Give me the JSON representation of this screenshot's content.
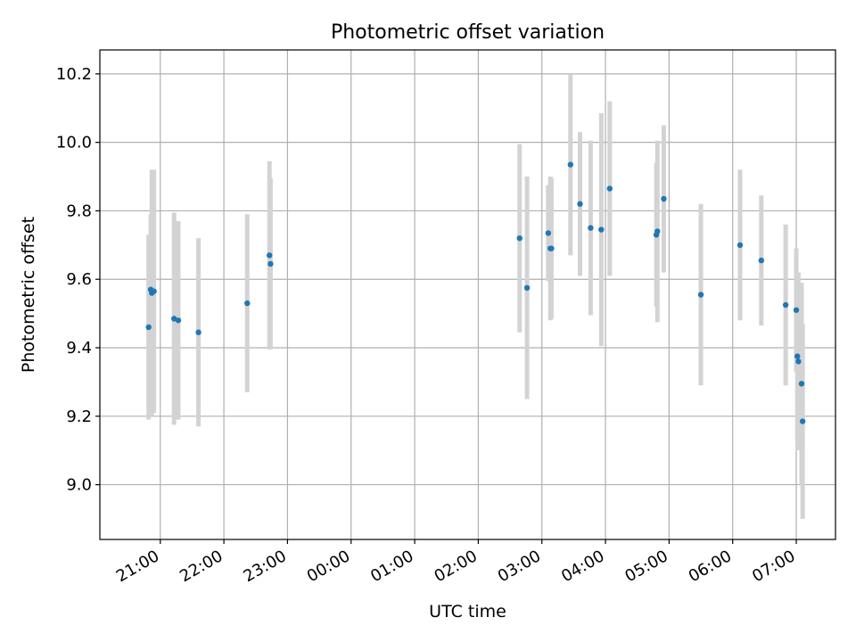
{
  "chart_data": {
    "type": "scatter",
    "title": "Photometric offset variation",
    "xlabel": "UTC time",
    "ylabel": "Photometric offset",
    "xlim": [
      "20:03",
      "07:37"
    ],
    "ylim": [
      8.84,
      10.27
    ],
    "x_ticks": [
      "21:00",
      "22:00",
      "23:00",
      "00:00",
      "01:00",
      "02:00",
      "03:00",
      "04:00",
      "05:00",
      "06:00",
      "07:00"
    ],
    "y_ticks": [
      9.0,
      9.2,
      9.4,
      9.6,
      9.8,
      10.0,
      10.2
    ],
    "grid": true,
    "colors": {
      "point": "#1f77b4",
      "errorbar": "#d3d3d3",
      "grid": "#b0b0b0"
    },
    "points": [
      {
        "time": "20:49",
        "y": 9.46,
        "err": 0.27
      },
      {
        "time": "20:51",
        "y": 9.57,
        "err": 0.22
      },
      {
        "time": "20:52",
        "y": 9.56,
        "err": 0.36
      },
      {
        "time": "20:54",
        "y": 9.565,
        "err": 0.355
      },
      {
        "time": "21:13",
        "y": 9.485,
        "err": 0.31
      },
      {
        "time": "21:17",
        "y": 9.48,
        "err": 0.29
      },
      {
        "time": "21:36",
        "y": 9.445,
        "err": 0.275
      },
      {
        "time": "22:22",
        "y": 9.53,
        "err": 0.26
      },
      {
        "time": "22:43",
        "y": 9.67,
        "err": 0.275
      },
      {
        "time": "22:44",
        "y": 9.645,
        "err": 0.25
      },
      {
        "time": "02:39",
        "y": 9.72,
        "err": 0.275
      },
      {
        "time": "02:46",
        "y": 9.575,
        "err": 0.325
      },
      {
        "time": "03:06",
        "y": 9.735,
        "err": 0.14
      },
      {
        "time": "03:08",
        "y": 9.69,
        "err": 0.21
      },
      {
        "time": "03:09",
        "y": 9.69,
        "err": 0.205
      },
      {
        "time": "03:27",
        "y": 9.935,
        "err": 0.265
      },
      {
        "time": "03:36",
        "y": 9.82,
        "err": 0.21
      },
      {
        "time": "03:46",
        "y": 9.75,
        "err": 0.255
      },
      {
        "time": "03:56",
        "y": 9.745,
        "err": 0.34
      },
      {
        "time": "04:04",
        "y": 9.865,
        "err": 0.255
      },
      {
        "time": "04:48",
        "y": 9.73,
        "err": 0.21
      },
      {
        "time": "04:49",
        "y": 9.74,
        "err": 0.265
      },
      {
        "time": "04:55",
        "y": 9.835,
        "err": 0.215
      },
      {
        "time": "05:30",
        "y": 9.555,
        "err": 0.265
      },
      {
        "time": "06:07",
        "y": 9.7,
        "err": 0.22
      },
      {
        "time": "06:27",
        "y": 9.655,
        "err": 0.19
      },
      {
        "time": "06:50",
        "y": 9.525,
        "err": 0.235
      },
      {
        "time": "07:00",
        "y": 9.51,
        "err": 0.18
      },
      {
        "time": "07:01",
        "y": 9.375,
        "err": 0.245
      },
      {
        "time": "07:02",
        "y": 9.36,
        "err": 0.26
      },
      {
        "time": "07:05",
        "y": 9.295,
        "err": 0.295
      },
      {
        "time": "07:06",
        "y": 9.185,
        "err": 0.285
      }
    ]
  }
}
